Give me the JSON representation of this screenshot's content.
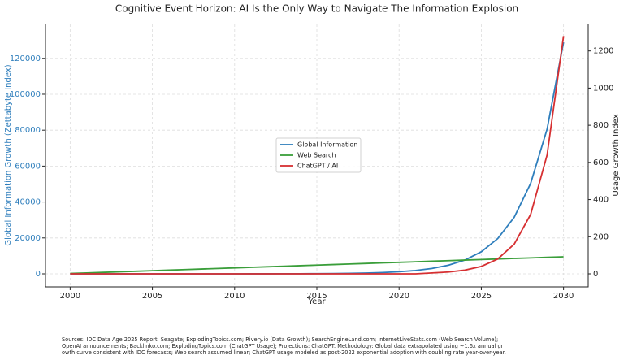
{
  "chart_data": {
    "type": "line",
    "title": "Cognitive Event Horizon: AI Is the Only Way to Navigate The Information Explosion",
    "xlabel": "Year",
    "ylabel": "Global Information Growth (Zettabyte Index)",
    "y2label": "Usage Growth Index",
    "x": [
      2000,
      2001,
      2002,
      2003,
      2004,
      2005,
      2006,
      2007,
      2008,
      2009,
      2010,
      2011,
      2012,
      2013,
      2014,
      2015,
      2016,
      2017,
      2018,
      2019,
      2020,
      2021,
      2022,
      2023,
      2024,
      2025,
      2026,
      2027,
      2028,
      2029,
      2030
    ],
    "series": [
      {
        "name": "Global Information",
        "color": "#2e7ebc",
        "values": [
          0.1,
          0.2,
          0.3,
          0.4,
          0.6,
          1,
          1.6,
          2.6,
          4.2,
          6.7,
          10.7,
          17,
          27,
          44,
          70,
          112,
          179,
          286,
          458,
          733,
          1173,
          1876,
          3002,
          4803,
          7685,
          12296,
          19674,
          31478,
          50365,
          80584,
          128934
        ]
      },
      {
        "name": "Web Search",
        "color": "#3a9e3a",
        "axis": "y2",
        "values": [
          2,
          5,
          8,
          11,
          14,
          17,
          20,
          23,
          26,
          29,
          32,
          35,
          38,
          41,
          44,
          47,
          50,
          53,
          56,
          59,
          62,
          65,
          68,
          71,
          74,
          77,
          80,
          83,
          86,
          89,
          92
        ]
      },
      {
        "name": "ChatGPT / AI",
        "color": "#d62f31",
        "axis": "y2",
        "values": [
          0,
          0,
          0,
          0,
          0,
          0,
          0,
          0,
          0,
          0,
          0,
          0,
          0,
          0,
          0,
          0,
          0,
          0,
          0,
          0,
          0,
          0,
          5,
          10,
          20,
          40,
          80,
          160,
          320,
          640,
          1280
        ]
      }
    ],
    "xlim": [
      1998.5,
      2031.5
    ],
    "xticks": [
      2000,
      2005,
      2010,
      2015,
      2020,
      2025,
      2030
    ],
    "ylim": [
      -7240,
      138900
    ],
    "yticks": [
      0,
      20000,
      40000,
      60000,
      80000,
      100000,
      120000
    ],
    "y2lim": [
      -70,
      1343
    ],
    "y2ticks": [
      0,
      200,
      400,
      600,
      800,
      1000,
      1200
    ],
    "grid": true,
    "legend": "center",
    "footnote": [
      "Sources: IDC Data Age 2025 Report, Seagate; ExplodingTopics.com; Rivery.io (Data Growth); SearchEngineLand.com; InternetLiveStats.com (Web Search Volume);",
      "OpenAI announcements; Backlinko.com; ExplodingTopics.com (ChatGPT Usage); Projections: ChatGPT. Methodology: Global data extrapolated using ~1.6x annual gr",
      "owth curve consistent with IDC forecasts; Web search assumed linear; ChatGPT usage modeled as post-2022 exponential adoption with doubling rate year-over-year."
    ]
  }
}
